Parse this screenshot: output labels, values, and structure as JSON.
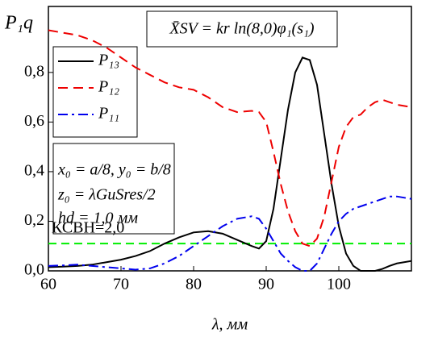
{
  "chart_data": {
    "type": "line",
    "y_label": "P₁q",
    "x_label": "λ, мм",
    "annotation_formula": "X̄SV = kr ln(8,0)φ₁(s₁)",
    "annotation_params": [
      "x₀ = a/8, y₀ = b/8",
      "z₀ = λGuSres/2",
      "hd = 1,0 мм"
    ],
    "threshold": {
      "label": "КСВН=2,0",
      "value": 0.11,
      "color": "#00ee00"
    },
    "x": [
      60,
      62,
      64,
      66,
      68,
      70,
      72,
      74,
      76,
      78,
      80,
      82,
      84,
      86,
      88,
      89,
      90,
      91,
      92,
      93,
      94,
      95,
      96,
      97,
      98,
      99,
      100,
      101,
      102,
      103,
      104,
      105,
      106,
      107,
      108,
      110
    ],
    "series": [
      {
        "name": "P₁₃",
        "color": "#000000",
        "dash": "solid",
        "values": [
          0.015,
          0.017,
          0.02,
          0.025,
          0.035,
          0.045,
          0.06,
          0.08,
          0.11,
          0.135,
          0.155,
          0.16,
          0.15,
          0.125,
          0.1,
          0.09,
          0.12,
          0.25,
          0.45,
          0.65,
          0.8,
          0.86,
          0.85,
          0.75,
          0.55,
          0.35,
          0.18,
          0.07,
          0.02,
          0,
          0,
          0,
          0.008,
          0.02,
          0.03,
          0.04
        ]
      },
      {
        "name": "P₁₂",
        "color": "#ee0000",
        "dash": "dash",
        "values": [
          0.97,
          0.96,
          0.95,
          0.93,
          0.9,
          0.86,
          0.82,
          0.79,
          0.76,
          0.74,
          0.73,
          0.7,
          0.66,
          0.64,
          0.645,
          0.64,
          0.6,
          0.48,
          0.35,
          0.24,
          0.16,
          0.11,
          0.1,
          0.13,
          0.22,
          0.36,
          0.5,
          0.58,
          0.62,
          0.63,
          0.66,
          0.68,
          0.69,
          0.68,
          0.67,
          0.66
        ]
      },
      {
        "name": "P₁₁",
        "color": "#0000ee",
        "dash": "dashdot",
        "values": [
          0.02,
          0.022,
          0.025,
          0.02,
          0.015,
          0.01,
          0.005,
          0.01,
          0.03,
          0.06,
          0.1,
          0.14,
          0.18,
          0.21,
          0.22,
          0.21,
          0.17,
          0.12,
          0.07,
          0.04,
          0.015,
          0,
          0,
          0.03,
          0.09,
          0.15,
          0.2,
          0.23,
          0.25,
          0.26,
          0.27,
          0.28,
          0.29,
          0.3,
          0.3,
          0.29
        ]
      }
    ],
    "xlim": [
      60,
      110
    ],
    "xticks": [
      60,
      70,
      80,
      90,
      100
    ],
    "ylim": [
      0,
      1.066
    ],
    "yticks": [
      {
        "value": 0,
        "label": "0,0"
      },
      {
        "value": 0.2,
        "label": "0,2"
      },
      {
        "value": 0.4,
        "label": "0,4"
      },
      {
        "value": 0.6,
        "label": "0,6"
      },
      {
        "value": 0.8,
        "label": "0,8"
      }
    ],
    "grid": false
  }
}
